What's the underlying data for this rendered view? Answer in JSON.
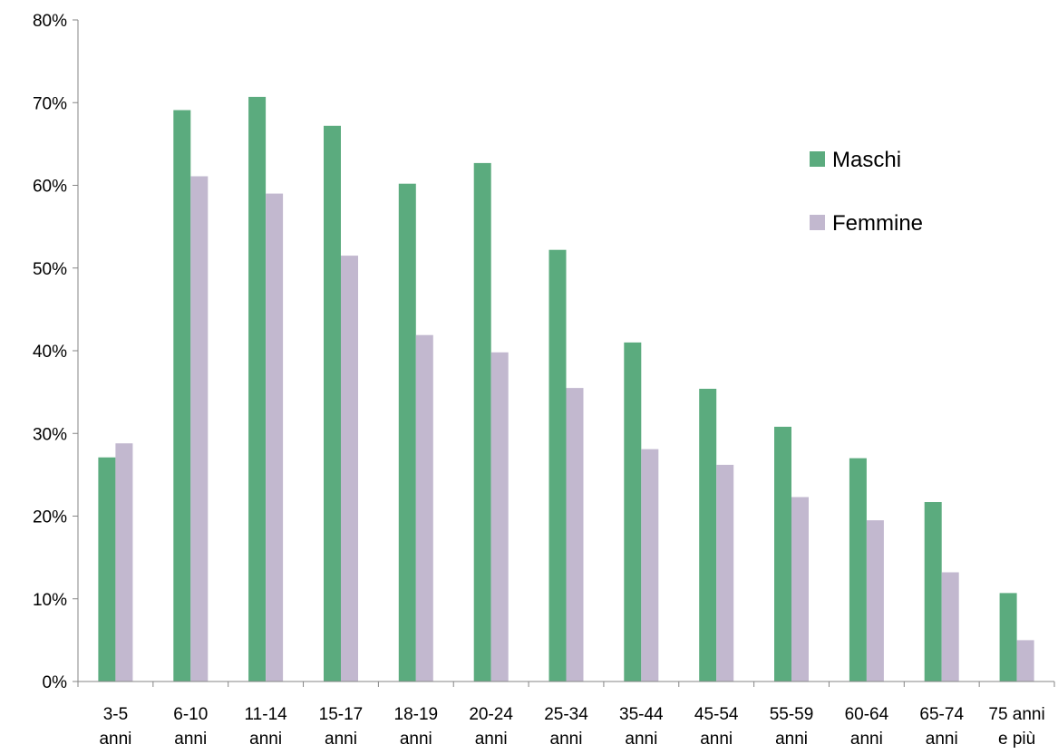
{
  "chart_data": {
    "type": "bar",
    "categories": [
      [
        "3-5",
        "anni"
      ],
      [
        "6-10",
        "anni"
      ],
      [
        "11-14",
        "anni"
      ],
      [
        "15-17",
        "anni"
      ],
      [
        "18-19",
        "anni"
      ],
      [
        "20-24",
        "anni"
      ],
      [
        "25-34",
        "anni"
      ],
      [
        "35-44",
        "anni"
      ],
      [
        "45-54",
        "anni"
      ],
      [
        "55-59",
        "anni"
      ],
      [
        "60-64",
        "anni"
      ],
      [
        "65-74",
        "anni"
      ],
      [
        "75 anni",
        "e più"
      ]
    ],
    "series": [
      {
        "name": "Maschi",
        "color": "#5bab7e",
        "values": [
          27.1,
          69.1,
          70.7,
          67.2,
          60.2,
          62.7,
          52.2,
          41.0,
          35.4,
          30.8,
          27.0,
          21.7,
          10.7
        ]
      },
      {
        "name": "Femmine",
        "color": "#c2b8cf",
        "values": [
          28.8,
          61.1,
          59.0,
          51.5,
          41.9,
          39.8,
          35.5,
          28.1,
          26.2,
          22.3,
          19.5,
          13.2,
          5.0
        ]
      }
    ],
    "ylim": [
      0,
      80
    ],
    "yticks": [
      "0%",
      "10%",
      "20%",
      "30%",
      "40%",
      "50%",
      "60%",
      "70%",
      "80%"
    ],
    "title": "",
    "xlabel": "",
    "ylabel": "",
    "legend": "right",
    "grid": false
  }
}
